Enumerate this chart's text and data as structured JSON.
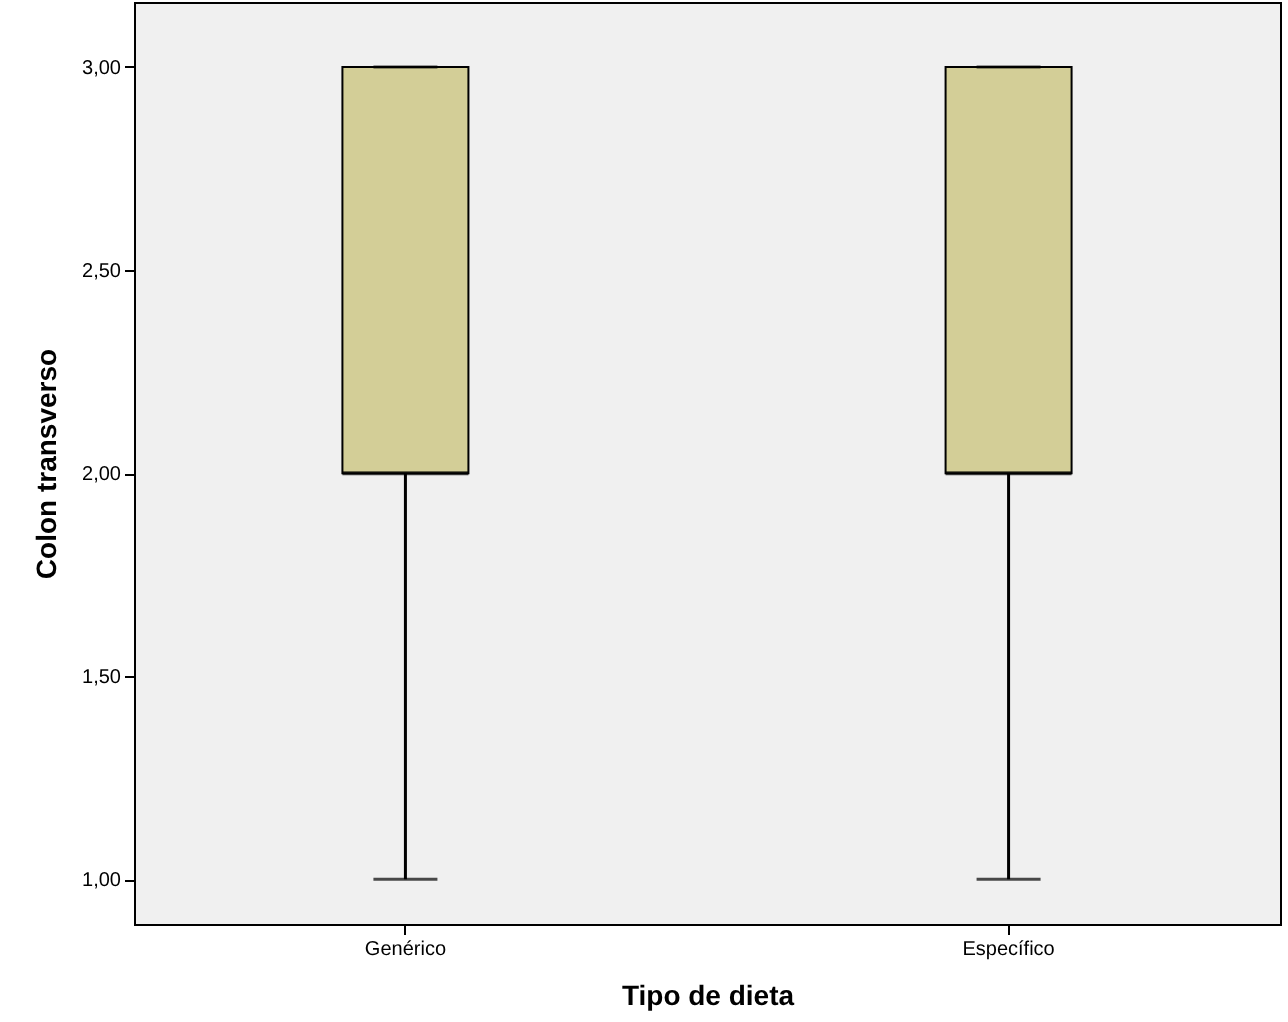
{
  "chart_data": {
    "type": "box",
    "xlabel": "Tipo de dieta",
    "ylabel": "Colon transverso",
    "categories": [
      "Genérico",
      "Específico"
    ],
    "boxes": [
      {
        "low": 1,
        "q1": 2,
        "median": 2,
        "q3": 3,
        "high": 3
      },
      {
        "low": 1,
        "q1": 2,
        "median": 2,
        "q3": 3,
        "high": 3
      }
    ],
    "color": "#d3ce97",
    "ylim": [
      0.89,
      3.16
    ],
    "yticks": [
      {
        "value": 1,
        "label": "1,00"
      },
      {
        "value": 1.5,
        "label": "1,50"
      },
      {
        "value": 2,
        "label": "2,00"
      },
      {
        "value": 2.5,
        "label": "2,50"
      },
      {
        "value": 3,
        "label": "3,00"
      }
    ],
    "grid": false
  }
}
